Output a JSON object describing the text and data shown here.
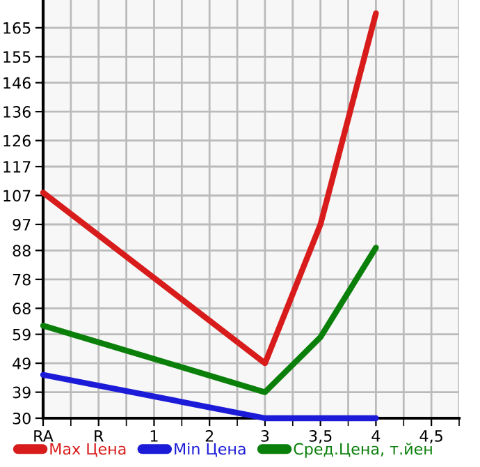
{
  "chart_data": {
    "type": "line",
    "categories": [
      "RA",
      "R",
      "1",
      "2",
      "3",
      "3,5",
      "4",
      "4,5"
    ],
    "series": [
      {
        "name": "Max Цена",
        "color": "#d81c1c",
        "values": [
          108,
          null,
          null,
          null,
          49,
          97,
          170,
          null
        ]
      },
      {
        "name": "Min Цена",
        "color": "#1c1cd8",
        "values": [
          45,
          null,
          null,
          null,
          30,
          30,
          30,
          null
        ]
      },
      {
        "name": "Сред.Цена, т.йен",
        "color": "#0a7f0a",
        "values": [
          62,
          null,
          null,
          null,
          39,
          58,
          89,
          null
        ]
      }
    ],
    "ylim": [
      30,
      174.6
    ],
    "yticks": [
      30,
      39,
      49,
      59,
      68,
      78,
      88,
      97,
      107,
      117,
      126,
      136,
      146,
      155,
      165
    ],
    "grid": true,
    "legend": "bottom",
    "marker": "none",
    "line_style": "solid"
  }
}
